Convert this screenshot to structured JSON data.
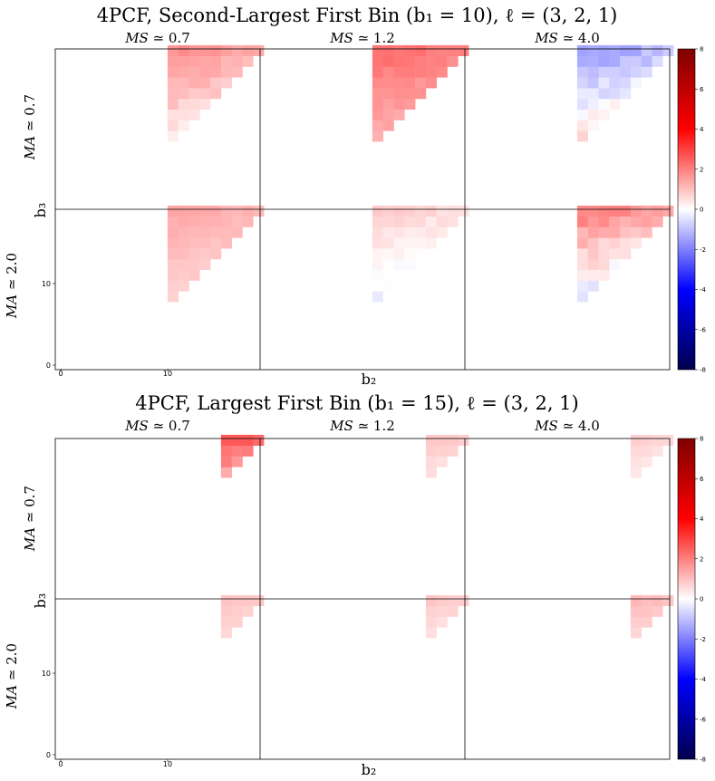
{
  "chart_data": [
    {
      "type": "heatmap",
      "title": "4PCF, Second-Largest First Bin (b₁ = 10), ℓ = (3, 2, 1)",
      "xlabel": "b₂",
      "ylabel": "b₃",
      "columns": [
        "M_S ≃ 0.7",
        "M_S ≃ 1.2",
        "M_S ≃ 4.0"
      ],
      "column_labels": [
        "𝑀𝑆 ≃ 0.7",
        "𝑀𝑆 ≃ 1.2",
        "𝑀𝑆 ≃ 4.0"
      ],
      "rows": [
        "M_A ≃ 0.7",
        "M_A ≃ 2.0"
      ],
      "row_labels": [
        "𝑀𝐴 ≃ 0.7",
        "𝑀𝐴 ≃ 2.0"
      ],
      "x_ticks": [
        "0",
        "10"
      ],
      "y_ticks": [
        "0",
        "10"
      ],
      "colorbar": {
        "min": -8,
        "max": 8,
        "ticks": [
          "-8",
          "-6",
          "-4",
          "-2",
          "0",
          "2",
          "4",
          "6",
          "8"
        ],
        "cmap": "seismic"
      },
      "b1": 10,
      "panels": [
        {
          "row": 0,
          "col": 0,
          "value_range": [
            0.0,
            2.0
          ],
          "tint": "red",
          "cells": "b3 >= b2 >= 11, b3 <= 19"
        },
        {
          "row": 0,
          "col": 1,
          "value_range": [
            1.0,
            2.5
          ],
          "tint": "red",
          "cells": "b3 >= b2 >= 11, b3 <= 19"
        },
        {
          "row": 0,
          "col": 2,
          "value_range": [
            -2.0,
            1.0
          ],
          "tint": "mostly blue",
          "cells": "b3 >= b2 >= 11, b3 <= 19"
        },
        {
          "row": 1,
          "col": 0,
          "value_range": [
            0.5,
            1.5
          ],
          "tint": "light red",
          "cells": "b3 >= b2 >= 11, b3 <= 19"
        },
        {
          "row": 1,
          "col": 1,
          "value_range": [
            -0.5,
            1.0
          ],
          "tint": "very light red",
          "cells": "b3 >= b2 >= 11, b3 <= 19"
        },
        {
          "row": 1,
          "col": 2,
          "value_range": [
            -1.0,
            2.5
          ],
          "tint": "red",
          "cells": "b3 >= b2 >= 11, b3 <= 19"
        }
      ]
    },
    {
      "type": "heatmap",
      "title": "4PCF, Largest First Bin (b₁ = 15), ℓ = (3, 2, 1)",
      "xlabel": "b₂",
      "ylabel": "b₃",
      "columns": [
        "M_S ≃ 0.7",
        "M_S ≃ 1.2",
        "M_S ≃ 4.0"
      ],
      "column_labels": [
        "𝑀𝑆 ≃ 0.7",
        "𝑀𝑆 ≃ 1.2",
        "𝑀𝑆 ≃ 4.0"
      ],
      "rows": [
        "M_A ≃ 0.7",
        "M_A ≃ 2.0"
      ],
      "row_labels": [
        "𝑀𝐴 ≃ 0.7",
        "𝑀𝐴 ≃ 2.0"
      ],
      "x_ticks": [
        "0",
        "10"
      ],
      "y_ticks": [
        "0",
        "10"
      ],
      "colorbar": {
        "min": -8,
        "max": 8,
        "ticks": [
          "-8",
          "-6",
          "-4",
          "-2",
          "0",
          "2",
          "4",
          "6",
          "8"
        ],
        "cmap": "seismic"
      },
      "b1": 15,
      "panels": [
        {
          "row": 0,
          "col": 0,
          "value_range": [
            1.0,
            3.0
          ],
          "tint": "red",
          "cells": "b3 >= b2 >= 16, b3 <= 19"
        },
        {
          "row": 0,
          "col": 1,
          "value_range": [
            0.3,
            1.0
          ],
          "tint": "light red",
          "cells": "b3 >= b2 >= 16, b3 <= 19"
        },
        {
          "row": 0,
          "col": 2,
          "value_range": [
            0.2,
            0.8
          ],
          "tint": "light red",
          "cells": "b3 >= b2 >= 16, b3 <= 19"
        },
        {
          "row": 1,
          "col": 0,
          "value_range": [
            0.5,
            1.0
          ],
          "tint": "light red",
          "cells": "b3 >= b2 >= 16, b3 <= 19"
        },
        {
          "row": 1,
          "col": 1,
          "value_range": [
            0.3,
            1.0
          ],
          "tint": "light red",
          "cells": "b3 >= b2 >= 16, b3 <= 19"
        },
        {
          "row": 1,
          "col": 2,
          "value_range": [
            0.5,
            1.2
          ],
          "tint": "light red",
          "cells": "b3 >= b2 >= 16, b3 <= 19"
        }
      ]
    }
  ]
}
